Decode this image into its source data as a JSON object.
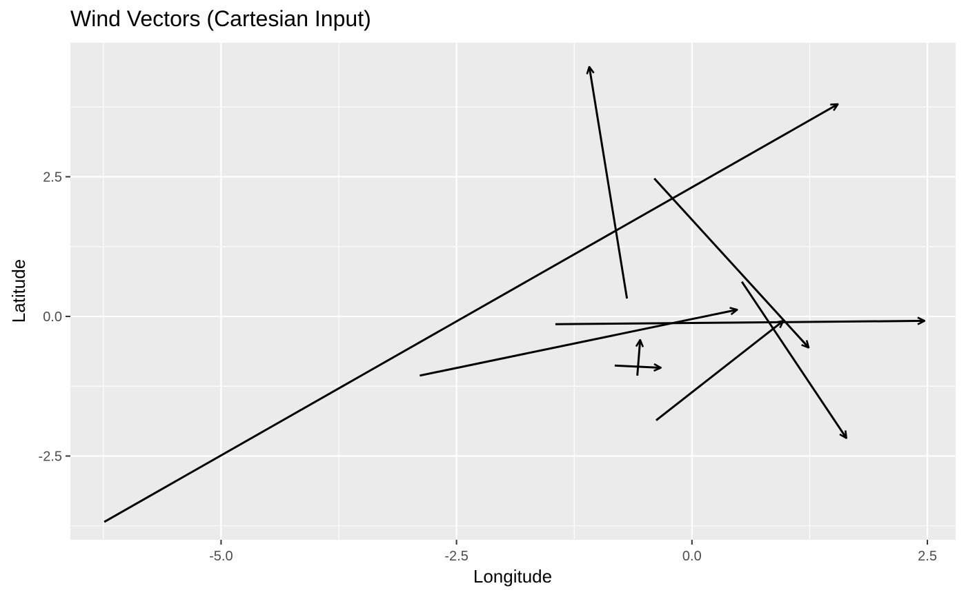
{
  "chart_data": {
    "type": "vector_field",
    "title": "Wind Vectors (Cartesian Input)",
    "xlabel": "Longitude",
    "ylabel": "Latitude",
    "xlim": [
      -6.6,
      2.8
    ],
    "ylim": [
      -4.0,
      4.9
    ],
    "x_ticks": [
      {
        "value": -5.0,
        "label": "-5.0"
      },
      {
        "value": -2.5,
        "label": "-2.5"
      },
      {
        "value": 0.0,
        "label": "0.0"
      },
      {
        "value": 2.5,
        "label": "2.5"
      }
    ],
    "y_ticks": [
      {
        "value": -2.5,
        "label": "-2.5"
      },
      {
        "value": 0.0,
        "label": "0.0"
      },
      {
        "value": 2.5,
        "label": "2.5"
      }
    ],
    "x_minor_ticks": [
      -6.25,
      -3.75,
      -1.25,
      1.25
    ],
    "y_minor_ticks": [
      -3.75,
      -1.25,
      1.25,
      3.75
    ],
    "grid": true,
    "vectors": [
      {
        "x0": -6.24,
        "y0": -3.68,
        "x1": 1.55,
        "y1": 3.8
      },
      {
        "x0": -0.69,
        "y0": 0.32,
        "x1": -1.09,
        "y1": 4.47
      },
      {
        "x0": -0.4,
        "y0": 2.47,
        "x1": 1.24,
        "y1": -0.56
      },
      {
        "x0": 0.53,
        "y0": 0.62,
        "x1": 1.64,
        "y1": -2.18
      },
      {
        "x0": -1.45,
        "y0": -0.14,
        "x1": 2.47,
        "y1": -0.08
      },
      {
        "x0": -2.89,
        "y0": -1.06,
        "x1": 0.48,
        "y1": 0.12
      },
      {
        "x0": -0.38,
        "y0": -1.86,
        "x1": 0.97,
        "y1": -0.08
      },
      {
        "x0": -0.82,
        "y0": -0.88,
        "x1": -0.33,
        "y1": -0.92
      },
      {
        "x0": -0.58,
        "y0": -1.06,
        "x1": -0.55,
        "y1": -0.42
      }
    ],
    "colors": {
      "panel_background": "#ebebeb",
      "grid_major": "#ffffff",
      "vector": "#000000",
      "tick": "#333333"
    }
  }
}
